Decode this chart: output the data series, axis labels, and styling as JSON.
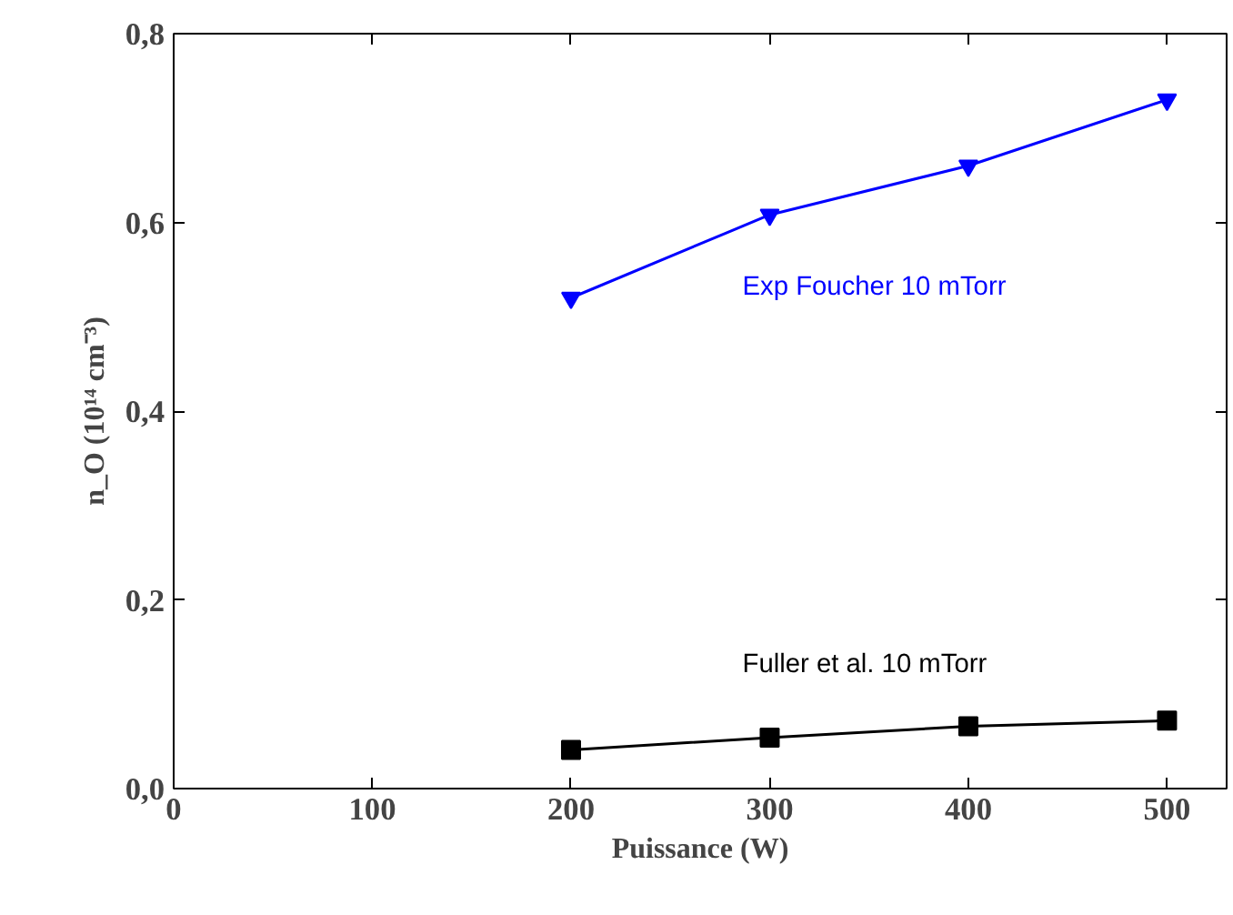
{
  "chart_data": {
    "type": "line",
    "xlabel": "Puissance (W)",
    "ylabel": "n_O (10¹⁴ cm⁻³)",
    "x": [
      200,
      300,
      400,
      500
    ],
    "series": [
      {
        "name": "Exp Foucher 10 mTorr",
        "color": "#0000ff",
        "values": [
          0.52,
          0.608,
          0.66,
          0.73
        ],
        "marker": "triangle"
      },
      {
        "name": "Fuller et al. 10 mTorr",
        "color": "#000000",
        "values": [
          0.041,
          0.054,
          0.066,
          0.072
        ],
        "marker": "square"
      }
    ],
    "xlim": [
      0,
      530
    ],
    "ylim": [
      0,
      0.8
    ],
    "xticks": [
      0,
      100,
      200,
      300,
      400,
      500
    ],
    "yticks": [
      {
        "value": 0,
        "label": "0,0"
      },
      {
        "value": 0.2,
        "label": "0,2"
      },
      {
        "value": 0.4,
        "label": "0,4"
      },
      {
        "value": 0.6,
        "label": "0,6"
      },
      {
        "value": 0.8,
        "label": "0,8"
      }
    ],
    "grid": false,
    "line_style": "solid"
  }
}
